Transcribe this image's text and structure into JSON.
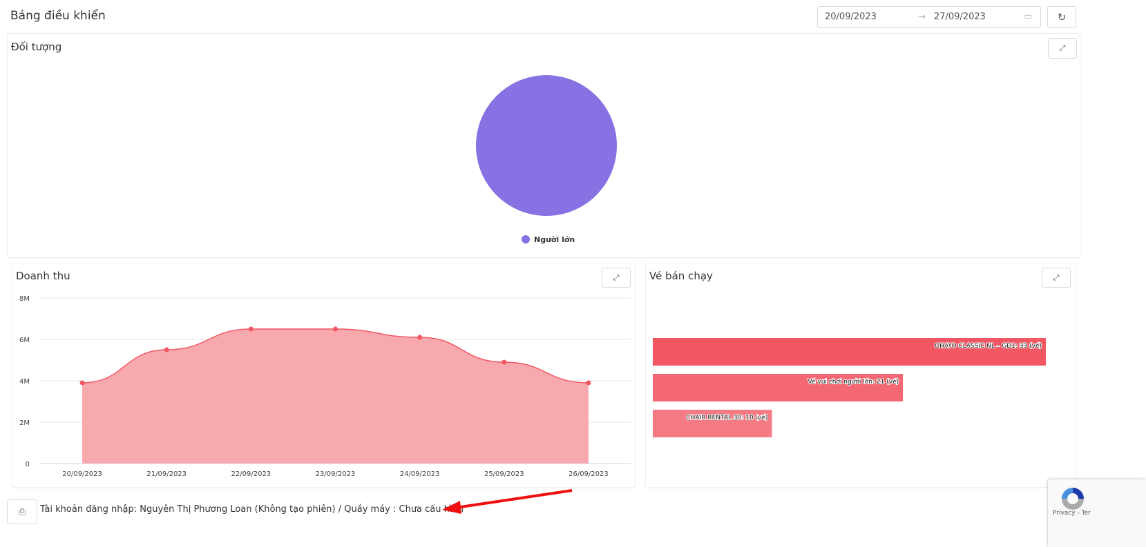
{
  "header": {
    "title": "Bảng điều khiển",
    "date_start": "20/09/2023",
    "date_end": "27/09/2023",
    "range_arrow": "→"
  },
  "cards": {
    "audience": {
      "title": "Đối tượng"
    },
    "revenue": {
      "title": "Doanh thu"
    },
    "top_tickets": {
      "title": "Vé bán chạy"
    }
  },
  "footer": {
    "text": "Tài khoản đăng nhập: Nguyên Thị Phương Loan (Không tạo phiên) / Quầy máy : Chưa cấu hình"
  },
  "recaptcha": {
    "text": "Privacy - Ter"
  },
  "chart_data": [
    {
      "type": "pie",
      "labels": [
        "Người lớn"
      ],
      "values": [
        100
      ],
      "colors": [
        "#8771e3"
      ],
      "legend": "bottom"
    },
    {
      "type": "area",
      "categories": [
        "20/09/2023",
        "21/09/2023",
        "22/09/2023",
        "23/09/2023",
        "24/09/2023",
        "25/09/2023",
        "26/09/2023"
      ],
      "values": [
        3900000,
        5500000,
        6500000,
        6500000,
        6100000,
        4900000,
        3900000
      ],
      "yticks": [
        "0",
        "2M",
        "4M",
        "6M",
        "8M"
      ],
      "ylim": [
        0,
        8000000
      ],
      "grid": true,
      "color": "#f25763",
      "fill": "#f7a9ae"
    },
    {
      "type": "bar",
      "orientation": "horizontal",
      "bars": [
        {
          "label": "OHAYO CLASSIC NL – GĐ1: 33 (vé)",
          "value": 33,
          "color": "#f25763"
        },
        {
          "label": "Vé vui chơi người lớn: 21 (vé)",
          "value": 21,
          "color": "#f36873"
        },
        {
          "label": "CHAIR RENTAL 30: 10 (vé)",
          "value": 10,
          "color": "#f47a83"
        }
      ]
    }
  ]
}
